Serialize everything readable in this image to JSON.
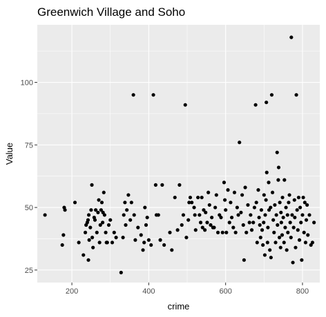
{
  "chart_data": {
    "type": "scatter",
    "title": "Greenwich Village and Soho",
    "xlabel": "crime",
    "ylabel": "Value",
    "xlim": [
      110,
      845
    ],
    "ylim": [
      20,
      123
    ],
    "x_ticks": [
      200,
      400,
      600,
      800
    ],
    "y_ticks": [
      25,
      50,
      75,
      100
    ],
    "x_minor": [
      100,
      300,
      500,
      700
    ],
    "y_minor": [
      37.5,
      62.5,
      87.5,
      112.5
    ],
    "grid": true,
    "panel_background": "#ebebeb",
    "point_color": "#000000",
    "points": [
      [
        130,
        47
      ],
      [
        175,
        35
      ],
      [
        178,
        39
      ],
      [
        180,
        50
      ],
      [
        182,
        49
      ],
      [
        208,
        52
      ],
      [
        218,
        36
      ],
      [
        230,
        31
      ],
      [
        235,
        40
      ],
      [
        237,
        43
      ],
      [
        240,
        44
      ],
      [
        242,
        45
      ],
      [
        243,
        29
      ],
      [
        244,
        47
      ],
      [
        245,
        37
      ],
      [
        248,
        42
      ],
      [
        250,
        49
      ],
      [
        252,
        59
      ],
      [
        253,
        38
      ],
      [
        255,
        34
      ],
      [
        258,
        46
      ],
      [
        260,
        45
      ],
      [
        262,
        49
      ],
      [
        265,
        40
      ],
      [
        268,
        48
      ],
      [
        270,
        53
      ],
      [
        272,
        36
      ],
      [
        274,
        43
      ],
      [
        276,
        49
      ],
      [
        278,
        52
      ],
      [
        280,
        44
      ],
      [
        281,
        48
      ],
      [
        283,
        56
      ],
      [
        285,
        47
      ],
      [
        288,
        40
      ],
      [
        290,
        36
      ],
      [
        292,
        36
      ],
      [
        296,
        43
      ],
      [
        300,
        45
      ],
      [
        305,
        36
      ],
      [
        310,
        40
      ],
      [
        315,
        38
      ],
      [
        328,
        24
      ],
      [
        333,
        38
      ],
      [
        335,
        47
      ],
      [
        338,
        52
      ],
      [
        340,
        43
      ],
      [
        343,
        49
      ],
      [
        347,
        55
      ],
      [
        352,
        45
      ],
      [
        355,
        52
      ],
      [
        360,
        95
      ],
      [
        362,
        47
      ],
      [
        365,
        37
      ],
      [
        372,
        42
      ],
      [
        380,
        39
      ],
      [
        385,
        33
      ],
      [
        388,
        36
      ],
      [
        390,
        50
      ],
      [
        393,
        43
      ],
      [
        396,
        46
      ],
      [
        400,
        37
      ],
      [
        406,
        35
      ],
      [
        412,
        95
      ],
      [
        418,
        59
      ],
      [
        420,
        47
      ],
      [
        425,
        47
      ],
      [
        430,
        37
      ],
      [
        435,
        59
      ],
      [
        440,
        35
      ],
      [
        455,
        40
      ],
      [
        460,
        33
      ],
      [
        468,
        54
      ],
      [
        475,
        41
      ],
      [
        480,
        59
      ],
      [
        486,
        43
      ],
      [
        490,
        47
      ],
      [
        495,
        91
      ],
      [
        498,
        38
      ],
      [
        503,
        45
      ],
      [
        505,
        52
      ],
      [
        508,
        54
      ],
      [
        512,
        52
      ],
      [
        518,
        50
      ],
      [
        520,
        47
      ],
      [
        522,
        41
      ],
      [
        528,
        54
      ],
      [
        532,
        47
      ],
      [
        535,
        44
      ],
      [
        538,
        54
      ],
      [
        540,
        42
      ],
      [
        543,
        49
      ],
      [
        546,
        41
      ],
      [
        548,
        48
      ],
      [
        552,
        44
      ],
      [
        555,
        56
      ],
      [
        558,
        51
      ],
      [
        561,
        43
      ],
      [
        564,
        46
      ],
      [
        567,
        42
      ],
      [
        570,
        42
      ],
      [
        573,
        50
      ],
      [
        576,
        55
      ],
      [
        580,
        40
      ],
      [
        584,
        47
      ],
      [
        588,
        46
      ],
      [
        592,
        40
      ],
      [
        596,
        60
      ],
      [
        598,
        53
      ],
      [
        600,
        49
      ],
      [
        602,
        40
      ],
      [
        606,
        57
      ],
      [
        610,
        44
      ],
      [
        613,
        52
      ],
      [
        616,
        46
      ],
      [
        620,
        42
      ],
      [
        623,
        56
      ],
      [
        626,
        40
      ],
      [
        630,
        50
      ],
      [
        633,
        47
      ],
      [
        636,
        76
      ],
      [
        640,
        48
      ],
      [
        643,
        55
      ],
      [
        646,
        43
      ],
      [
        648,
        29
      ],
      [
        651,
        58
      ],
      [
        654,
        40
      ],
      [
        658,
        51
      ],
      [
        662,
        44
      ],
      [
        665,
        47
      ],
      [
        668,
        41
      ],
      [
        672,
        44
      ],
      [
        675,
        50
      ],
      [
        678,
        91
      ],
      [
        680,
        52
      ],
      [
        682,
        36
      ],
      [
        685,
        57
      ],
      [
        687,
        46
      ],
      [
        689,
        43
      ],
      [
        691,
        38
      ],
      [
        693,
        49
      ],
      [
        695,
        41
      ],
      [
        697,
        35
      ],
      [
        699,
        44
      ],
      [
        700,
        55
      ],
      [
        702,
        31
      ],
      [
        703,
        47
      ],
      [
        705,
        53
      ],
      [
        706,
        92
      ],
      [
        707,
        64
      ],
      [
        709,
        36
      ],
      [
        710,
        42
      ],
      [
        712,
        60
      ],
      [
        713,
        49
      ],
      [
        715,
        33
      ],
      [
        717,
        50
      ],
      [
        718,
        30
      ],
      [
        720,
        95
      ],
      [
        722,
        56
      ],
      [
        724,
        45
      ],
      [
        726,
        40
      ],
      [
        728,
        51
      ],
      [
        730,
        36
      ],
      [
        732,
        47
      ],
      [
        734,
        72
      ],
      [
        735,
        43
      ],
      [
        737,
        61
      ],
      [
        738,
        66
      ],
      [
        740,
        38
      ],
      [
        741,
        52
      ],
      [
        743,
        34
      ],
      [
        744,
        48
      ],
      [
        745,
        44
      ],
      [
        747,
        39
      ],
      [
        748,
        54
      ],
      [
        750,
        46
      ],
      [
        752,
        36
      ],
      [
        753,
        61
      ],
      [
        755,
        42
      ],
      [
        757,
        50
      ],
      [
        759,
        33
      ],
      [
        761,
        47
      ],
      [
        762,
        40
      ],
      [
        764,
        52
      ],
      [
        766,
        55
      ],
      [
        768,
        44
      ],
      [
        770,
        38
      ],
      [
        771,
        118
      ],
      [
        773,
        47
      ],
      [
        775,
        28
      ],
      [
        777,
        42
      ],
      [
        779,
        53
      ],
      [
        780,
        46
      ],
      [
        782,
        34
      ],
      [
        784,
        95
      ],
      [
        786,
        49
      ],
      [
        788,
        41
      ],
      [
        790,
        54
      ],
      [
        792,
        37
      ],
      [
        794,
        50
      ],
      [
        796,
        44
      ],
      [
        798,
        29
      ],
      [
        800,
        47
      ],
      [
        802,
        54
      ],
      [
        804,
        40
      ],
      [
        806,
        52
      ],
      [
        808,
        36
      ],
      [
        810,
        45
      ],
      [
        812,
        51
      ],
      [
        814,
        39
      ],
      [
        818,
        47
      ],
      [
        822,
        35
      ],
      [
        826,
        36
      ],
      [
        830,
        44
      ]
    ]
  }
}
